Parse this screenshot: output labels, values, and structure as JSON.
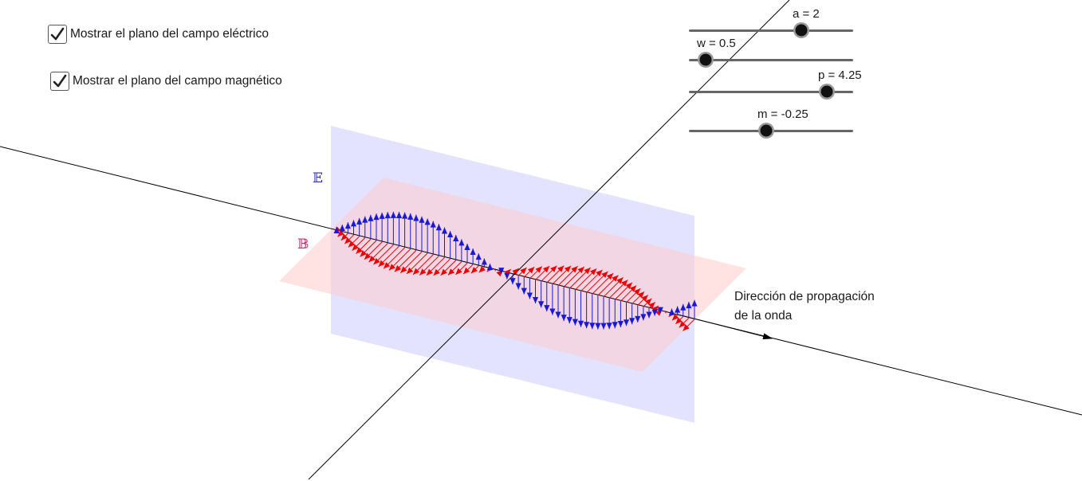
{
  "checkboxes": [
    {
      "label": "Mostrar el plano del campo eléctrico",
      "checked": true
    },
    {
      "label": "Mostrar el plano del campo magnético",
      "checked": true
    }
  ],
  "sliders": [
    {
      "label": "a = 2",
      "value": 2
    },
    {
      "label": "w = 0.5",
      "value": 0.5
    },
    {
      "label": "p = 4.25",
      "value": 4.25
    },
    {
      "label": "m = -0.25",
      "value": -0.25
    }
  ],
  "labels": {
    "electric_field": "𝔼",
    "magnetic_field": "𝔹",
    "propagation_line1": "Dirección de propagación",
    "propagation_line2": "de la onda"
  },
  "colors": {
    "electric_plane": "#ccccff",
    "magnetic_plane": "#ffcccc",
    "electric_vectors": "#1a1ad6",
    "magnetic_vectors": "#ee0000",
    "axes": "#000000"
  }
}
